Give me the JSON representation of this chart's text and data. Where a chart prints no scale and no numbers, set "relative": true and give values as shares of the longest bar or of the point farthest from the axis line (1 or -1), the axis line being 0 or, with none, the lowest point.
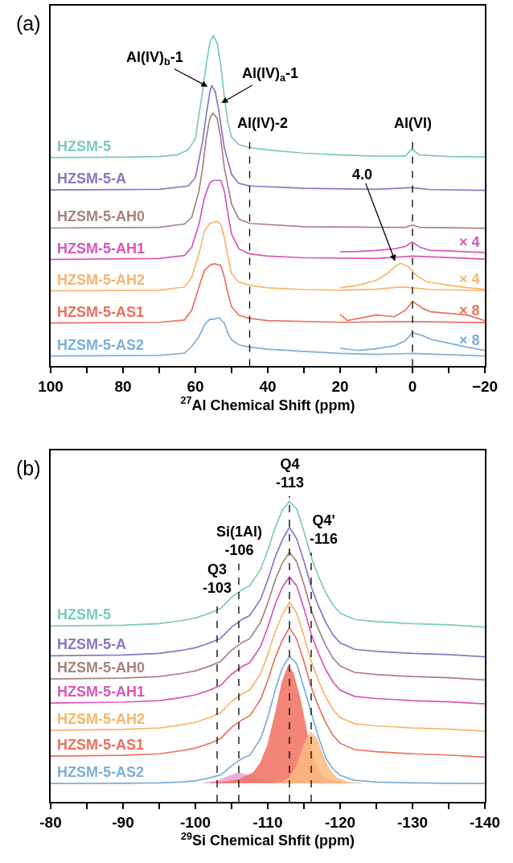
{
  "chart_data": [
    {
      "type": "line",
      "title": "(a)",
      "xlabel": "$^{27}$Al Chemical Shift (ppm)",
      "relative": true,
      "tick_labels": "x",
      "xlim": [
        100,
        -20
      ],
      "xticks": [
        100,
        {
          "value": 90,
          "label": null
        },
        80,
        {
          "value": 70,
          "label": null
        },
        60,
        {
          "value": 50,
          "label": null
        },
        40,
        {
          "value": 30,
          "label": null
        },
        20,
        {
          "value": 10,
          "label": null
        },
        0,
        {
          "value": -10,
          "label": null
        },
        {
          "value": -20,
          "label": "−20"
        }
      ],
      "series": [
        {
          "name": "HZSM-5",
          "color": "#7ccbb9",
          "x": [
            100,
            80,
            70,
            65,
            62,
            60,
            58,
            57,
            56,
            55.1,
            54,
            53,
            52,
            51,
            50,
            48,
            45,
            40,
            30,
            20,
            10,
            2,
            0.2,
            -2,
            -10,
            -20
          ],
          "values": [
            0.631,
            0.632,
            0.634,
            0.639,
            0.654,
            0.688,
            0.833,
            0.911,
            0.978,
            1.0,
            0.978,
            0.911,
            0.814,
            0.736,
            0.693,
            0.67,
            0.661,
            0.654,
            0.644,
            0.639,
            0.635,
            0.635,
            0.656,
            0.639,
            0.634,
            0.633
          ]
        },
        {
          "name": "HZSM-5-A",
          "color": "#8678c4",
          "x": [
            100,
            70,
            62,
            60,
            58,
            57,
            56,
            55.5,
            54.5,
            53.5,
            52,
            50,
            48,
            45,
            30,
            10,
            0,
            -5,
            -20
          ],
          "values": [
            0.533,
            0.535,
            0.545,
            0.57,
            0.68,
            0.76,
            0.83,
            0.849,
            0.83,
            0.77,
            0.66,
            0.58,
            0.553,
            0.545,
            0.538,
            0.535,
            0.54,
            0.534,
            0.532
          ]
        },
        {
          "name": "HZSM-5-AH0",
          "color": "#a8827b",
          "x": [
            100,
            70,
            63,
            61,
            59,
            58,
            57,
            56,
            55.1,
            54,
            53,
            52,
            50,
            48,
            45,
            30,
            10,
            2,
            0,
            -2,
            -20
          ],
          "values": [
            0.418,
            0.42,
            0.43,
            0.45,
            0.53,
            0.6,
            0.69,
            0.75,
            0.765,
            0.75,
            0.69,
            0.6,
            0.49,
            0.445,
            0.432,
            0.422,
            0.42,
            0.42,
            0.427,
            0.42,
            0.417
          ]
        },
        {
          "name": "HZSM-5-AH1",
          "color": "#d957b6",
          "x": [
            100,
            70,
            63,
            61,
            59,
            57.5,
            56,
            55,
            53,
            52,
            51,
            50,
            48,
            45,
            40,
            30,
            10,
            0,
            -20
          ],
          "values": [
            0.323,
            0.326,
            0.335,
            0.36,
            0.43,
            0.51,
            0.555,
            0.562,
            0.562,
            0.53,
            0.46,
            0.4,
            0.355,
            0.34,
            0.333,
            0.328,
            0.326,
            0.333,
            0.324
          ]
        },
        {
          "name": "× 4",
          "color": "#d957b6",
          "x": [
            20,
            15,
            10,
            5,
            2,
            0,
            -2,
            -5,
            -10,
            -15,
            -20
          ],
          "values": [
            0.346,
            0.347,
            0.35,
            0.355,
            0.362,
            0.376,
            0.36,
            0.35,
            0.349,
            0.346,
            0.344
          ]
        },
        {
          "name": "HZSM-5-AH2",
          "color": "#f8b56c",
          "x": [
            100,
            70,
            63,
            61,
            59,
            57.5,
            56,
            54.1,
            53,
            52,
            51,
            50,
            48,
            45,
            40,
            30,
            20,
            10,
            3,
            0,
            -5,
            -20
          ],
          "values": [
            0.228,
            0.23,
            0.24,
            0.27,
            0.34,
            0.41,
            0.432,
            0.438,
            0.43,
            0.39,
            0.33,
            0.28,
            0.255,
            0.245,
            0.237,
            0.232,
            0.23,
            0.233,
            0.24,
            0.237,
            0.232,
            0.229
          ]
        },
        {
          "name": "× 4",
          "color": "#f8b56c",
          "x": [
            20,
            15,
            10,
            7,
            5,
            3.3,
            1,
            -1,
            -4,
            -10,
            -15,
            -20
          ],
          "values": [
            0.237,
            0.245,
            0.26,
            0.28,
            0.3,
            0.312,
            0.3,
            0.275,
            0.255,
            0.245,
            0.238,
            0.233
          ]
        },
        {
          "name": "HZSM-5-AS1",
          "color": "#ec705e",
          "x": [
            100,
            70,
            63,
            61,
            59,
            57.5,
            56,
            54.8,
            53,
            52,
            51,
            50,
            48,
            45,
            40,
            20,
            0,
            -20
          ],
          "values": [
            0.131,
            0.133,
            0.14,
            0.17,
            0.24,
            0.29,
            0.305,
            0.31,
            0.305,
            0.27,
            0.22,
            0.18,
            0.155,
            0.145,
            0.138,
            0.133,
            0.135,
            0.132
          ]
        },
        {
          "name": "× 8",
          "color": "#ec705e",
          "x": [
            20,
            18,
            10,
            5,
            2,
            0,
            -3,
            -5,
            -10,
            -15,
            -20
          ],
          "values": [
            0.157,
            0.138,
            0.155,
            0.15,
            0.169,
            0.196,
            0.174,
            0.165,
            0.16,
            0.155,
            0.138
          ]
        },
        {
          "name": "HZSM-5-AS2",
          "color": "#7cafd8",
          "x": [
            100,
            70,
            63,
            61,
            59,
            57.5,
            56,
            55,
            53.5,
            52,
            51,
            50,
            48,
            45,
            40,
            30,
            20,
            10,
            0,
            -20
          ],
          "values": [
            0.031,
            0.033,
            0.04,
            0.06,
            0.09,
            0.125,
            0.143,
            0.142,
            0.147,
            0.13,
            0.1,
            0.08,
            0.065,
            0.058,
            0.052,
            0.045,
            0.039,
            0.036,
            0.039,
            0.031
          ]
        },
        {
          "name": "× 8",
          "color": "#7cafd8",
          "x": [
            20,
            15,
            10,
            5,
            2,
            0,
            -3,
            -5,
            -10,
            -15,
            -20
          ],
          "values": [
            0.055,
            0.048,
            0.053,
            0.062,
            0.077,
            0.102,
            0.092,
            0.082,
            0.07,
            0.058,
            0.048
          ]
        }
      ],
      "annotations": [
        {
          "text": "Al(IV)$_{b}$-1",
          "x": 56.6,
          "y": 0.845
        },
        {
          "text": "Al(IV)$_{a}$-1",
          "x": 52.8,
          "y": 0.796
        },
        {
          "text": "Al(IV)-2",
          "x": 45,
          "y": 0.707
        },
        {
          "text": "Al(VI)",
          "x": 0,
          "y": 0.707
        },
        {
          "text": "4.0",
          "x": 4.8,
          "y": 0.318
        }
      ],
      "ref_lines": [
        {
          "axis": "x",
          "value": 45,
          "line_style": "dashed"
        },
        {
          "axis": "x",
          "value": 0,
          "line_style": "dashed"
        }
      ]
    },
    {
      "type": "line",
      "title": "(b)",
      "xlabel": "$^{29}$Si Chemical Shfit (ppm)",
      "relative": true,
      "tick_labels": "x",
      "xlim": [
        -80,
        -140
      ],
      "xticks": [
        -80,
        {
          "value": -85,
          "label": null
        },
        -90,
        {
          "value": -95,
          "label": null
        },
        -100,
        {
          "value": -105,
          "label": null
        },
        -110,
        {
          "value": -115,
          "label": null
        },
        -120,
        {
          "value": -125,
          "label": null
        },
        -130,
        {
          "value": -135,
          "label": null
        },
        -140
      ],
      "series": [
        {
          "name": "HZSM-5",
          "color": "#7ccbb9",
          "x": [
            -80,
            -90,
            -95,
            -98,
            -100,
            -102,
            -103.5,
            -105,
            -106.5,
            -107.5,
            -109,
            -110,
            -111,
            -112,
            -113,
            -114,
            -115,
            -116,
            -117,
            -118,
            -119,
            -120,
            -122,
            -125,
            -130,
            -135,
            -140
          ],
          "values": [
            0.585,
            0.588,
            0.593,
            0.603,
            0.612,
            0.628,
            0.644,
            0.681,
            0.707,
            0.719,
            0.773,
            0.837,
            0.912,
            0.97,
            1.0,
            0.975,
            0.9,
            0.815,
            0.751,
            0.697,
            0.655,
            0.628,
            0.607,
            0.6,
            0.593,
            0.589,
            0.582
          ]
        },
        {
          "name": "HZSM-5-A",
          "color": "#8678c4",
          "x": [
            -80,
            -90,
            -95,
            -98,
            -100,
            -102,
            -103.5,
            -105,
            -106.5,
            -107.5,
            -109,
            -110,
            -111,
            -112,
            -113,
            -114,
            -115,
            -116,
            -117,
            -118,
            -119,
            -120,
            -122,
            -125,
            -130,
            -135,
            -140
          ],
          "values": [
            0.486,
            0.489,
            0.494,
            0.504,
            0.513,
            0.529,
            0.545,
            0.582,
            0.608,
            0.62,
            0.674,
            0.738,
            0.813,
            0.871,
            0.914,
            0.876,
            0.801,
            0.716,
            0.652,
            0.598,
            0.556,
            0.529,
            0.508,
            0.501,
            0.494,
            0.49,
            0.483
          ]
        },
        {
          "name": "HZSM-5-AH0",
          "color": "#a8827b",
          "x": [
            -80,
            -90,
            -95,
            -98,
            -100,
            -102,
            -103.5,
            -105,
            -106.5,
            -107.5,
            -109,
            -110,
            -111,
            -112,
            -113,
            -114,
            -115,
            -116,
            -117,
            -118,
            -119,
            -120,
            -122,
            -125,
            -130,
            -135,
            -140
          ],
          "values": [
            0.409,
            0.412,
            0.417,
            0.427,
            0.436,
            0.452,
            0.468,
            0.505,
            0.531,
            0.543,
            0.597,
            0.661,
            0.736,
            0.794,
            0.831,
            0.799,
            0.724,
            0.639,
            0.575,
            0.521,
            0.479,
            0.452,
            0.431,
            0.424,
            0.417,
            0.413,
            0.406
          ]
        },
        {
          "name": "HZSM-5-AH1",
          "color": "#d957b6",
          "x": [
            -80,
            -90,
            -95,
            -98,
            -100,
            -102,
            -103.5,
            -105,
            -106.5,
            -107.5,
            -109,
            -110,
            -111,
            -112,
            -113,
            -114,
            -115,
            -116,
            -117,
            -118,
            -119,
            -120,
            -122,
            -125,
            -130,
            -135,
            -140
          ],
          "values": [
            0.329,
            0.332,
            0.337,
            0.347,
            0.356,
            0.372,
            0.388,
            0.425,
            0.451,
            0.463,
            0.517,
            0.581,
            0.656,
            0.714,
            0.749,
            0.719,
            0.644,
            0.559,
            0.495,
            0.441,
            0.399,
            0.372,
            0.351,
            0.344,
            0.337,
            0.333,
            0.326
          ]
        },
        {
          "name": "HZSM-5-AH2",
          "color": "#f8b56c",
          "x": [
            -80,
            -90,
            -95,
            -98,
            -100,
            -102,
            -103.5,
            -105,
            -106.5,
            -107.5,
            -109,
            -110,
            -111,
            -112,
            -113,
            -114,
            -115,
            -116,
            -117,
            -118,
            -119,
            -120,
            -122,
            -125,
            -130,
            -135,
            -140
          ],
          "values": [
            0.238,
            0.241,
            0.246,
            0.256,
            0.265,
            0.281,
            0.297,
            0.334,
            0.36,
            0.372,
            0.426,
            0.49,
            0.565,
            0.623,
            0.664,
            0.628,
            0.553,
            0.468,
            0.404,
            0.35,
            0.308,
            0.281,
            0.26,
            0.253,
            0.246,
            0.242,
            0.235
          ]
        },
        {
          "name": "HZSM-5-AS1",
          "color": "#ec705e",
          "x": [
            -80,
            -90,
            -95,
            -98,
            -100,
            -102,
            -103.5,
            -105,
            -106.5,
            -107.5,
            -109,
            -110,
            -111,
            -112,
            -113,
            -114,
            -115,
            -116,
            -117,
            -118,
            -119,
            -120,
            -122,
            -125,
            -130,
            -135,
            -140
          ],
          "values": [
            0.152,
            0.155,
            0.16,
            0.17,
            0.179,
            0.195,
            0.211,
            0.248,
            0.274,
            0.286,
            0.34,
            0.404,
            0.479,
            0.537,
            0.58,
            0.542,
            0.467,
            0.382,
            0.318,
            0.264,
            0.222,
            0.195,
            0.174,
            0.167,
            0.16,
            0.156,
            0.149
          ]
        },
        {
          "type": "area",
          "color": "#ee9fd3",
          "x": [
            -101,
            -103,
            -104.5,
            -106,
            -107.5,
            -109,
            -110.5
          ],
          "values": [
            0.062,
            0.07,
            0.085,
            0.097,
            0.088,
            0.072,
            0.063
          ]
        },
        {
          "type": "area",
          "color": "#f0705f",
          "x": [
            -102,
            -104,
            -106,
            -108,
            -109,
            -110,
            -111,
            -112,
            -112.8,
            -113.5,
            -114.5,
            -115.5,
            -116.5,
            -117.5,
            -119,
            -121
          ],
          "values": [
            0.062,
            0.066,
            0.074,
            0.097,
            0.13,
            0.19,
            0.29,
            0.4,
            0.452,
            0.43,
            0.34,
            0.22,
            0.13,
            0.085,
            0.068,
            0.062
          ]
        },
        {
          "type": "area",
          "color": "#fdbb7f",
          "x": [
            -111,
            -112,
            -113,
            -114,
            -115,
            -115.9,
            -116.8,
            -117.5,
            -118.5,
            -119.5,
            -121,
            -123
          ],
          "values": [
            0.062,
            0.066,
            0.08,
            0.12,
            0.19,
            0.233,
            0.21,
            0.16,
            0.11,
            0.08,
            0.066,
            0.062
          ]
        },
        {
          "name": "HZSM-5-AS2",
          "color": "#7cafd8",
          "x": [
            -80,
            -90,
            -95,
            -98,
            -100,
            -102,
            -103.5,
            -105,
            -106.5,
            -107.5,
            -109,
            -110,
            -111,
            -112,
            -113,
            -114,
            -115,
            -116,
            -117,
            -118,
            -119,
            -120,
            -122,
            -125,
            -130,
            -135,
            -140
          ],
          "values": [
            0.061,
            0.062,
            0.063,
            0.066,
            0.07,
            0.08,
            0.09,
            0.12,
            0.145,
            0.155,
            0.21,
            0.28,
            0.37,
            0.445,
            0.484,
            0.46,
            0.38,
            0.297,
            0.217,
            0.147,
            0.11,
            0.088,
            0.072,
            0.066,
            0.063,
            0.062,
            0.061
          ]
        }
      ],
      "annotations": [
        {
          "text": "Q4\n-113",
          "x": -113,
          "y": 1.03
        },
        {
          "text": "Q4'\n-116",
          "x": -116,
          "y": 0.842
        },
        {
          "text": "Si(1Al)\n-106",
          "x": -106,
          "y": 0.805
        },
        {
          "text": "Q3\n-103",
          "x": -103,
          "y": 0.68
        }
      ],
      "ref_lines": [
        {
          "axis": "x",
          "value": -103,
          "line_style": "dashed"
        },
        {
          "axis": "x",
          "value": -106,
          "line_style": "dashed"
        },
        {
          "axis": "x",
          "value": -113,
          "line_style": "dashed"
        },
        {
          "axis": "x",
          "value": -116,
          "line_style": "dashed"
        }
      ]
    }
  ]
}
